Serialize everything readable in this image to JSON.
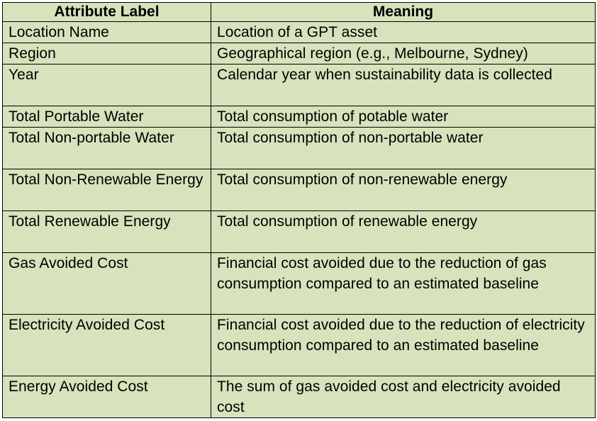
{
  "table": {
    "headers": [
      "Attribute Label",
      "Meaning"
    ],
    "rows": [
      {
        "label": "Location Name",
        "meaning": "Location of a GPT asset"
      },
      {
        "label": "Region",
        "meaning": "Geographical region (e.g., Melbourne, Sydney)"
      },
      {
        "label": "Year",
        "meaning": "Calendar year when sustainability data is collected"
      },
      {
        "label": "Total Portable Water",
        "meaning": "Total consumption of potable water"
      },
      {
        "label": "Total Non-portable Water",
        "meaning": "Total consumption of non-portable water"
      },
      {
        "label": "Total Non-Renewable Energy",
        "meaning": "Total consumption of non-renewable energy"
      },
      {
        "label": "Total Renewable Energy",
        "meaning": "Total consumption of renewable energy"
      },
      {
        "label": "Gas Avoided Cost",
        "meaning": "Financial cost avoided due to the reduction of gas consumption compared to an estimated baseline"
      },
      {
        "label": "Electricity Avoided Cost",
        "meaning": "Financial cost avoided due to the reduction of electricity consumption compared to an estimated baseline"
      },
      {
        "label": "Energy Avoided Cost",
        "meaning": "The sum of gas avoided cost and electricity avoided cost"
      }
    ],
    "background_color": "#d6e3bc",
    "border_color": "#000000"
  }
}
